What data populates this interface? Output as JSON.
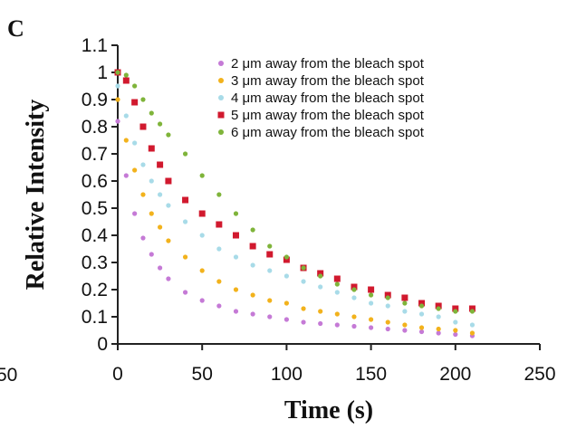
{
  "panel_label": "C",
  "left_edge_label": "50",
  "chart_data": {
    "type": "scatter",
    "title": "",
    "xlabel": "Time (s)",
    "ylabel": "Relative Intensity",
    "xlim": [
      0,
      250
    ],
    "ylim": [
      0,
      1.1
    ],
    "x_ticks": [
      "0",
      "50",
      "100",
      "150",
      "200",
      "250"
    ],
    "y_ticks": [
      "0",
      "0.1",
      "0.2",
      "0.3",
      "0.4",
      "0.5",
      "0.6",
      "0.7",
      "0.8",
      "0.9",
      "1",
      "1.1"
    ],
    "legend_position": "top-right",
    "series": [
      {
        "name": "2 μm away from the bleach spot",
        "color": "#c57ad6",
        "x": [
          0,
          5,
          10,
          15,
          20,
          25,
          30,
          40,
          50,
          60,
          70,
          80,
          90,
          100,
          110,
          120,
          130,
          140,
          150,
          160,
          170,
          180,
          190,
          200,
          210
        ],
        "y": [
          0.82,
          0.62,
          0.48,
          0.39,
          0.33,
          0.28,
          0.24,
          0.19,
          0.16,
          0.14,
          0.12,
          0.11,
          0.1,
          0.09,
          0.08,
          0.075,
          0.07,
          0.065,
          0.06,
          0.055,
          0.05,
          0.045,
          0.04,
          0.035,
          0.03
        ]
      },
      {
        "name": "3 μm away from the bleach spot",
        "color": "#f2b21c",
        "x": [
          0,
          5,
          10,
          15,
          20,
          25,
          30,
          40,
          50,
          60,
          70,
          80,
          90,
          100,
          110,
          120,
          130,
          140,
          150,
          160,
          170,
          180,
          190,
          200,
          210
        ],
        "y": [
          0.9,
          0.75,
          0.64,
          0.55,
          0.48,
          0.43,
          0.38,
          0.32,
          0.27,
          0.23,
          0.2,
          0.18,
          0.16,
          0.15,
          0.13,
          0.12,
          0.11,
          0.1,
          0.09,
          0.08,
          0.07,
          0.06,
          0.055,
          0.05,
          0.04
        ]
      },
      {
        "name": "4 μm away from the bleach spot",
        "color": "#a8dbe8",
        "x": [
          0,
          5,
          10,
          15,
          20,
          25,
          30,
          40,
          50,
          60,
          70,
          80,
          90,
          100,
          110,
          120,
          130,
          140,
          150,
          160,
          170,
          180,
          190,
          200,
          210
        ],
        "y": [
          0.95,
          0.84,
          0.74,
          0.66,
          0.6,
          0.55,
          0.51,
          0.45,
          0.4,
          0.35,
          0.32,
          0.29,
          0.27,
          0.25,
          0.23,
          0.21,
          0.19,
          0.17,
          0.15,
          0.14,
          0.12,
          0.11,
          0.1,
          0.08,
          0.07
        ]
      },
      {
        "name": "5 μm away from the bleach spot",
        "color": "#d1192e",
        "x": [
          0,
          5,
          10,
          15,
          20,
          25,
          30,
          40,
          50,
          60,
          70,
          80,
          90,
          100,
          110,
          120,
          130,
          140,
          150,
          160,
          170,
          180,
          190,
          200,
          210
        ],
        "y": [
          1.0,
          0.97,
          0.89,
          0.8,
          0.72,
          0.66,
          0.6,
          0.53,
          0.48,
          0.44,
          0.4,
          0.36,
          0.33,
          0.31,
          0.28,
          0.26,
          0.24,
          0.21,
          0.2,
          0.18,
          0.17,
          0.15,
          0.14,
          0.13,
          0.13
        ]
      },
      {
        "name": "6 μm away from the bleach spot",
        "color": "#7fb43a",
        "x": [
          0,
          5,
          10,
          15,
          20,
          25,
          30,
          40,
          50,
          60,
          70,
          80,
          90,
          100,
          110,
          120,
          130,
          140,
          150,
          160,
          170,
          180,
          190,
          200,
          210
        ],
        "y": [
          1.0,
          0.99,
          0.95,
          0.9,
          0.85,
          0.81,
          0.77,
          0.7,
          0.62,
          0.55,
          0.48,
          0.42,
          0.36,
          0.32,
          0.28,
          0.25,
          0.22,
          0.2,
          0.18,
          0.17,
          0.15,
          0.14,
          0.13,
          0.12,
          0.12
        ]
      }
    ]
  }
}
